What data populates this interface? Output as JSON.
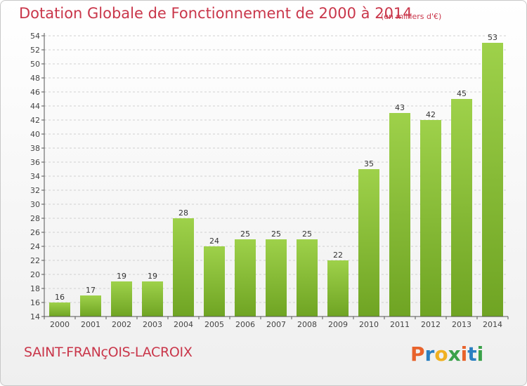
{
  "title": "Dotation Globale de Fonctionnement de 2000 à 2014",
  "unit": "(en milliers d'€)",
  "commune": "SAINT-FRANçOIS-LACROIX",
  "logo": {
    "text": "Proxiti",
    "colors": [
      "#e8632c",
      "#2a7fc1",
      "#f0b021",
      "#3aa14a",
      "#e8632c",
      "#2a7fc1",
      "#3aa14a"
    ]
  },
  "colors": {
    "bar_light": "#9ed14a",
    "bar_dark": "#6fa423",
    "title": "#c9364a",
    "grid": "#d0d0d0"
  },
  "chart_data": {
    "type": "bar",
    "categories": [
      "2000",
      "2001",
      "2002",
      "2003",
      "2004",
      "2005",
      "2006",
      "2007",
      "2008",
      "2009",
      "2010",
      "2011",
      "2012",
      "2013",
      "2014"
    ],
    "values": [
      16,
      17,
      19,
      19,
      28,
      24,
      25,
      25,
      25,
      22,
      35,
      43,
      42,
      45,
      53
    ],
    "ylim": [
      14,
      54
    ],
    "yticks": [
      14,
      16,
      18,
      20,
      22,
      24,
      26,
      28,
      30,
      32,
      34,
      36,
      38,
      40,
      42,
      44,
      46,
      48,
      50,
      52,
      54
    ],
    "grid": true
  }
}
